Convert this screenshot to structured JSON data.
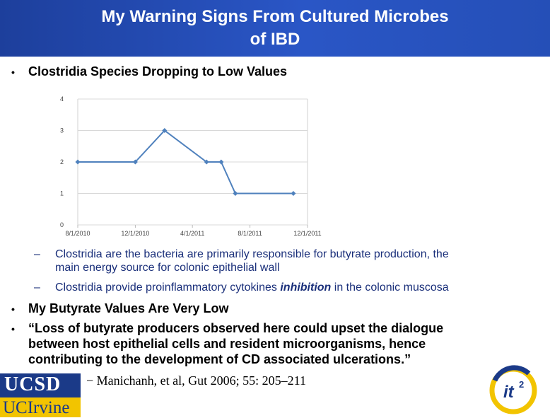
{
  "header": {
    "title_line1": "My Warning Signs From Cultured Microbes",
    "title_line2": "of IBD"
  },
  "bullets": {
    "b1": "Clostridia Species Dropping to Low Values",
    "b2": "My Butyrate Values Are Very Low",
    "b3_line1": "“Loss of butyrate producers observed here could upset the dialogue",
    "b3_line2": "between host epithelial cells and resident microorganisms, hence",
    "b3_line3": "contributing to the development of CD associated ulcerations.”",
    "bullet_char": "•"
  },
  "subbullets": {
    "s1_line1": "Clostridia are the bacteria are primarily responsible for butyrate production, the",
    "s1_line2": "main energy source for colonic epithelial wall",
    "s2_before": "Clostridia provide proinflammatory cytokines ",
    "s2_italic": "inhibition",
    "s2_after": " in the colonic muscosa",
    "dash": "–"
  },
  "citation": "− Manichanh, et al, Gut 2006; 55: 205–211",
  "logos": {
    "ucsd": "UCSD",
    "uci": "UCIrvine",
    "it2_main": "it",
    "it2_sup": "2"
  },
  "colors": {
    "header_blue": "#2a56c6",
    "line_color": "#4f81bd",
    "ucsd_blue": "#1b3a88",
    "uci_gold": "#f2c400"
  },
  "chart_data": {
    "type": "line",
    "title": "",
    "xlabel": "",
    "ylabel": "",
    "ylim": [
      0,
      4
    ],
    "yticks": [
      "0",
      "1",
      "2",
      "3",
      "4"
    ],
    "xticks": [
      "8/1/2010",
      "12/1/2010",
      "4/1/2011",
      "8/1/2011",
      "12/1/2011"
    ],
    "x": [
      "2010-08-01",
      "2010-12-01",
      "2011-02-01",
      "2011-05-01",
      "2011-06-01",
      "2011-07-01",
      "2011-11-01"
    ],
    "series": [
      {
        "values": [
          2,
          2,
          3,
          2,
          2,
          1,
          1
        ]
      }
    ],
    "grid": "horizontal",
    "legend": "none"
  }
}
